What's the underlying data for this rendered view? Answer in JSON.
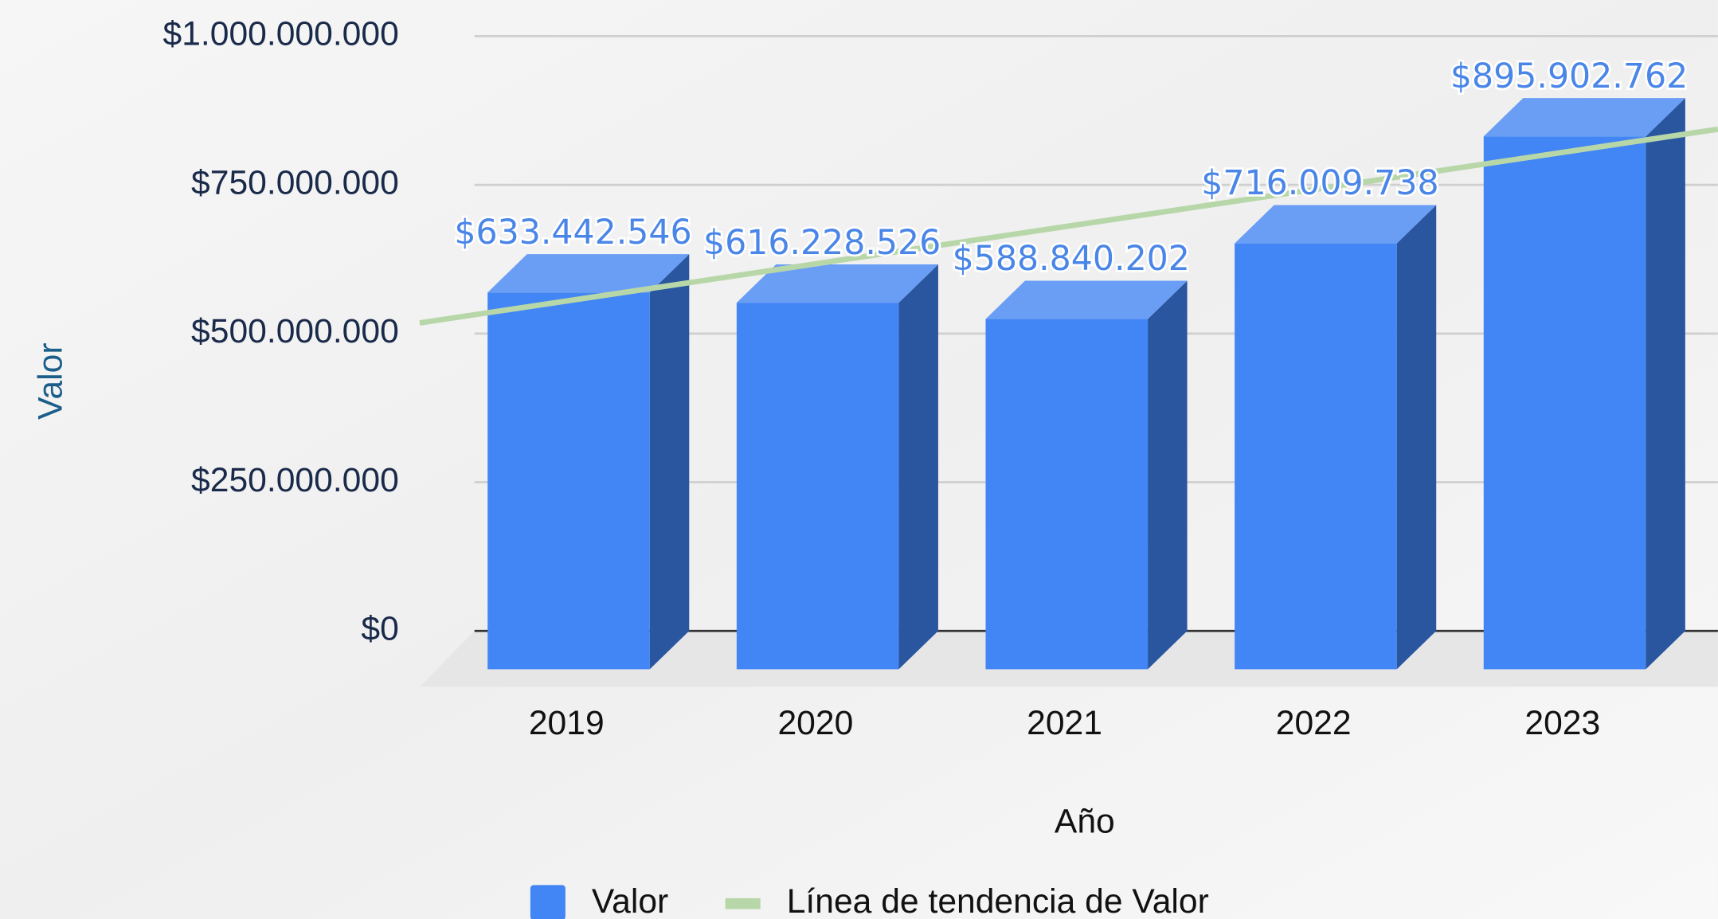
{
  "chart_data": {
    "type": "bar3d",
    "categories": [
      "2019",
      "2020",
      "2021",
      "2022",
      "2023"
    ],
    "series": [
      {
        "name": "Valor",
        "color": "#4285f4",
        "values": [
          633442546,
          616228526,
          588840202,
          716009738,
          895902762
        ],
        "value_labels": [
          "$633.442.546",
          "$616.228.526",
          "$588.840.202",
          "$716.009.738",
          "$895.902.762"
        ]
      }
    ],
    "trendline": {
      "name": "Línea de tendencia de Valor",
      "color": "#b7d7a8"
    },
    "x_label": "Año",
    "y_label": "Valor",
    "ylim": [
      0,
      1000000000
    ],
    "yticks": [
      {
        "value": 0,
        "label": "$0"
      },
      {
        "value": 250000000,
        "label": "$250.000.000"
      },
      {
        "value": 500000000,
        "label": "$500.000.000"
      },
      {
        "value": 750000000,
        "label": "$750.000.000"
      },
      {
        "value": 1000000000,
        "label": "$1.000.000.000"
      }
    ],
    "grid": true
  }
}
